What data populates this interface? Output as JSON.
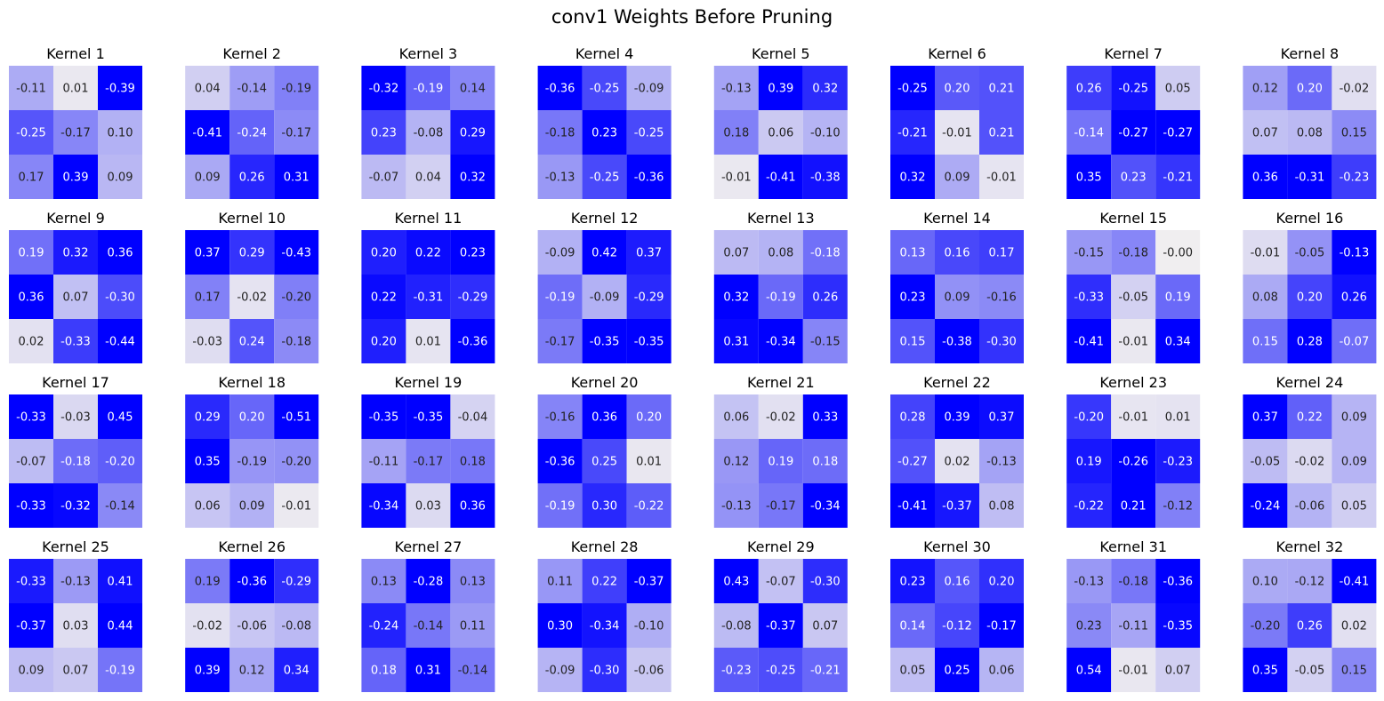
{
  "chart_data": {
    "type": "heatmap",
    "title": "conv1 Weights Before Pruning",
    "colormap": {
      "low": "#0000ff",
      "mid": "#f0eef0",
      "high": "#0000ff"
    },
    "value_format": "2 decimals",
    "kernels": [
      {
        "title": "Kernel 1",
        "values": [
          [
            -0.11,
            0.01,
            -0.39
          ],
          [
            -0.25,
            -0.17,
            0.1
          ],
          [
            0.17,
            0.39,
            0.09
          ]
        ]
      },
      {
        "title": "Kernel 2",
        "values": [
          [
            0.04,
            -0.14,
            -0.19
          ],
          [
            -0.41,
            -0.24,
            -0.17
          ],
          [
            0.09,
            0.26,
            0.31
          ]
        ]
      },
      {
        "title": "Kernel 3",
        "values": [
          [
            -0.32,
            -0.19,
            0.14
          ],
          [
            0.23,
            -0.08,
            0.29
          ],
          [
            -0.07,
            0.04,
            0.32
          ]
        ]
      },
      {
        "title": "Kernel 4",
        "values": [
          [
            -0.36,
            -0.25,
            -0.09
          ],
          [
            -0.18,
            0.23,
            -0.25
          ],
          [
            -0.13,
            -0.25,
            -0.36
          ]
        ]
      },
      {
        "title": "Kernel 5",
        "values": [
          [
            -0.13,
            0.39,
            0.32
          ],
          [
            0.18,
            0.06,
            -0.1
          ],
          [
            -0.01,
            -0.41,
            -0.38
          ]
        ]
      },
      {
        "title": "Kernel 6",
        "values": [
          [
            -0.25,
            0.2,
            0.21
          ],
          [
            -0.21,
            -0.01,
            0.21
          ],
          [
            0.32,
            0.09,
            -0.01
          ]
        ]
      },
      {
        "title": "Kernel 7",
        "values": [
          [
            0.26,
            -0.25,
            0.05
          ],
          [
            -0.14,
            -0.27,
            -0.27
          ],
          [
            0.35,
            0.23,
            -0.21
          ]
        ]
      },
      {
        "title": "Kernel 8",
        "values": [
          [
            0.12,
            0.2,
            -0.02
          ],
          [
            0.07,
            0.08,
            0.15
          ],
          [
            0.36,
            -0.31,
            -0.23
          ]
        ]
      },
      {
        "title": "Kernel 9",
        "values": [
          [
            0.19,
            0.32,
            0.36
          ],
          [
            0.36,
            0.07,
            -0.3
          ],
          [
            0.02,
            -0.33,
            -0.44
          ]
        ]
      },
      {
        "title": "Kernel 10",
        "values": [
          [
            0.37,
            0.29,
            -0.43
          ],
          [
            0.17,
            -0.02,
            -0.2
          ],
          [
            -0.03,
            0.24,
            -0.18
          ]
        ]
      },
      {
        "title": "Kernel 11",
        "values": [
          [
            0.2,
            0.22,
            0.23
          ],
          [
            0.22,
            -0.31,
            -0.29
          ],
          [
            0.2,
            0.01,
            -0.36
          ]
        ]
      },
      {
        "title": "Kernel 12",
        "values": [
          [
            -0.09,
            0.42,
            0.37
          ],
          [
            -0.19,
            -0.09,
            -0.29
          ],
          [
            -0.17,
            -0.35,
            -0.35
          ]
        ]
      },
      {
        "title": "Kernel 13",
        "values": [
          [
            0.07,
            0.08,
            -0.18
          ],
          [
            0.32,
            -0.19,
            0.26
          ],
          [
            0.31,
            -0.34,
            -0.15
          ]
        ]
      },
      {
        "title": "Kernel 14",
        "values": [
          [
            0.13,
            0.16,
            0.17
          ],
          [
            0.23,
            0.09,
            -0.16
          ],
          [
            0.15,
            -0.38,
            -0.3
          ]
        ]
      },
      {
        "title": "Kernel 15",
        "values": [
          [
            -0.15,
            -0.18,
            -0.0
          ],
          [
            -0.33,
            -0.05,
            0.19
          ],
          [
            -0.41,
            -0.01,
            0.34
          ]
        ]
      },
      {
        "title": "Kernel 16",
        "values": [
          [
            -0.01,
            -0.05,
            -0.13
          ],
          [
            0.08,
            0.2,
            0.26
          ],
          [
            0.15,
            0.28,
            -0.07
          ]
        ]
      },
      {
        "title": "Kernel 17",
        "values": [
          [
            -0.33,
            -0.03,
            0.45
          ],
          [
            -0.07,
            -0.18,
            -0.2
          ],
          [
            -0.33,
            -0.32,
            -0.14
          ]
        ]
      },
      {
        "title": "Kernel 18",
        "values": [
          [
            0.29,
            0.2,
            -0.51
          ],
          [
            0.35,
            -0.19,
            -0.2
          ],
          [
            0.06,
            0.09,
            -0.01
          ]
        ]
      },
      {
        "title": "Kernel 19",
        "values": [
          [
            -0.35,
            -0.35,
            -0.04
          ],
          [
            -0.11,
            -0.17,
            0.18
          ],
          [
            -0.34,
            0.03,
            0.36
          ]
        ]
      },
      {
        "title": "Kernel 20",
        "values": [
          [
            -0.16,
            0.36,
            0.2
          ],
          [
            -0.36,
            0.25,
            0.01
          ],
          [
            -0.19,
            0.3,
            -0.22
          ]
        ]
      },
      {
        "title": "Kernel 21",
        "values": [
          [
            0.06,
            -0.02,
            0.33
          ],
          [
            0.12,
            0.19,
            0.18
          ],
          [
            -0.13,
            -0.17,
            -0.34
          ]
        ]
      },
      {
        "title": "Kernel 22",
        "values": [
          [
            0.28,
            0.39,
            0.37
          ],
          [
            -0.27,
            0.02,
            -0.13
          ],
          [
            -0.41,
            -0.37,
            0.08
          ]
        ]
      },
      {
        "title": "Kernel 23",
        "values": [
          [
            -0.2,
            -0.01,
            0.01
          ],
          [
            0.19,
            -0.26,
            -0.23
          ],
          [
            -0.22,
            0.21,
            -0.12
          ]
        ]
      },
      {
        "title": "Kernel 24",
        "values": [
          [
            0.37,
            0.22,
            0.09
          ],
          [
            -0.05,
            -0.02,
            0.09
          ],
          [
            -0.24,
            -0.06,
            0.05
          ]
        ]
      },
      {
        "title": "Kernel 25",
        "values": [
          [
            -0.33,
            -0.13,
            0.41
          ],
          [
            -0.37,
            0.03,
            0.44
          ],
          [
            0.09,
            0.07,
            -0.19
          ]
        ]
      },
      {
        "title": "Kernel 26",
        "values": [
          [
            0.19,
            -0.36,
            -0.29
          ],
          [
            -0.02,
            -0.06,
            -0.08
          ],
          [
            0.39,
            0.12,
            0.34
          ]
        ]
      },
      {
        "title": "Kernel 27",
        "values": [
          [
            0.13,
            -0.28,
            0.13
          ],
          [
            -0.24,
            -0.14,
            0.11
          ],
          [
            0.18,
            0.31,
            -0.14
          ]
        ]
      },
      {
        "title": "Kernel 28",
        "values": [
          [
            0.11,
            0.22,
            -0.37
          ],
          [
            0.3,
            -0.34,
            -0.1
          ],
          [
            -0.09,
            -0.3,
            -0.06
          ]
        ]
      },
      {
        "title": "Kernel 29",
        "values": [
          [
            0.43,
            -0.07,
            -0.3
          ],
          [
            -0.08,
            -0.37,
            0.07
          ],
          [
            -0.23,
            -0.25,
            -0.21
          ]
        ]
      },
      {
        "title": "Kernel 30",
        "values": [
          [
            0.23,
            0.16,
            0.2
          ],
          [
            0.14,
            -0.12,
            -0.17
          ],
          [
            0.05,
            0.25,
            0.06
          ]
        ]
      },
      {
        "title": "Kernel 31",
        "values": [
          [
            -0.13,
            -0.18,
            -0.36
          ],
          [
            0.23,
            -0.11,
            -0.35
          ],
          [
            0.54,
            -0.01,
            0.07
          ]
        ]
      },
      {
        "title": "Kernel 32",
        "values": [
          [
            0.1,
            -0.12,
            -0.41
          ],
          [
            -0.2,
            0.26,
            0.02
          ],
          [
            0.35,
            -0.05,
            0.15
          ]
        ]
      }
    ]
  }
}
